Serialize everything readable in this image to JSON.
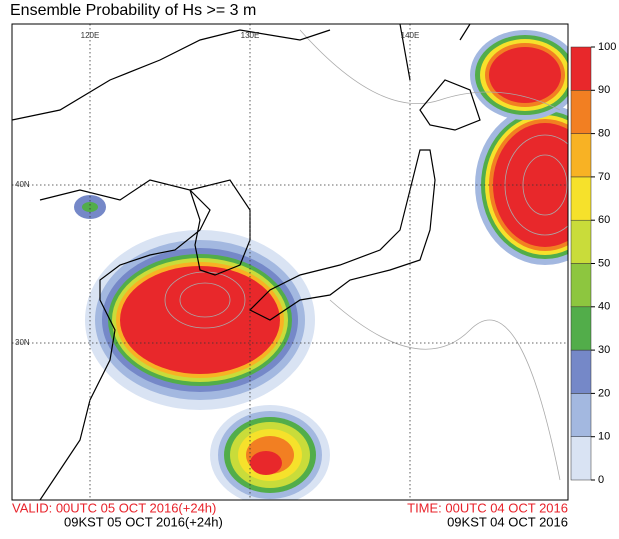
{
  "title": "Ensemble Probability of Hs >= 3 m",
  "map": {
    "lon_labels": [
      "120E",
      "130E",
      "140E"
    ],
    "lat_labels": [
      "40N",
      "30N"
    ]
  },
  "colorbar": {
    "ticks": [
      0,
      10,
      20,
      30,
      40,
      50,
      60,
      70,
      80,
      90,
      100
    ],
    "colors": [
      "#d9e3f3",
      "#a3b8e0",
      "#7588c8",
      "#52ad4a",
      "#8dc63f",
      "#c9dc3a",
      "#f6e12b",
      "#f8b224",
      "#f27f22",
      "#e8282b"
    ]
  },
  "footer": {
    "valid": "VALID: 00UTC 05 OCT 2016(+24h)",
    "valid_kst": "09KST 05 OCT 2016(+24h)",
    "time": "TIME: 00UTC 04 OCT 2016",
    "time_kst": "09KST 04 OCT 2016"
  }
}
